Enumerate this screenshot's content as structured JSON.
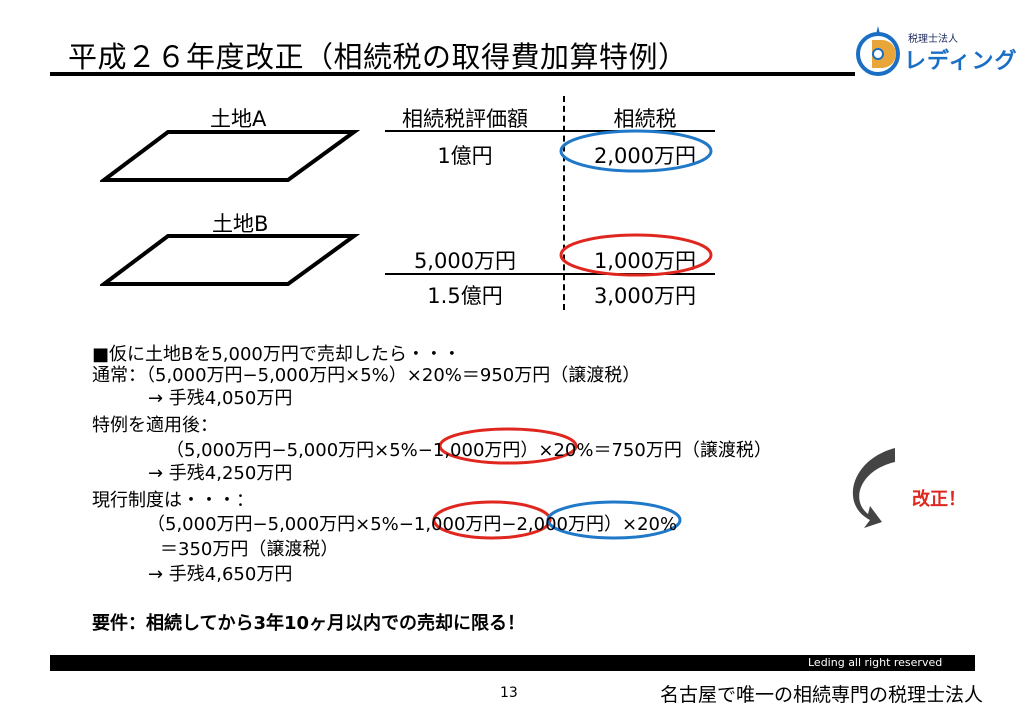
{
  "header": {
    "title": "平成２６年度改正（相続税の取得費加算特例）",
    "logo_small": "税理士法人",
    "logo_big": "レディング"
  },
  "land": {
    "a_label": "土地A",
    "b_label": "土地B"
  },
  "table": {
    "headers": [
      "相続税評価額",
      "相続税"
    ],
    "rows": [
      [
        "1億円",
        "2,000万円"
      ],
      [
        "5,000万円",
        "1,000万円"
      ],
      [
        "1.5億円",
        "3,000万円"
      ]
    ]
  },
  "body": {
    "lines": [
      "■仮に土地Bを5,000万円で売却したら・・・",
      "通常：（5,000万円−5,000万円×5%）×20%＝950万円（譲渡税）",
      "→  手残4,050万円",
      "特例を適用後：",
      "（5,000万円−5,000万円×5%−1,000万円）×20%＝750万円（譲渡税）",
      "→  手残4,250万円",
      "現行制度は・・・：",
      "（5,000万円−5,000万円×5%−1,000万円−2,000万円）×20%",
      "＝350万円（譲渡税）",
      "→  手残4,650万円"
    ],
    "requirement": "要件：相続してから3年10ヶ月以内での売却に限る！"
  },
  "annotation": {
    "kaisei": "改正！"
  },
  "footer": {
    "rights": "Leding all right reserved",
    "page": "13",
    "org": "名古屋で唯一の相続専門の税理士法人"
  },
  "colors": {
    "red_circle": "#e0271f",
    "blue_circle": "#1f78c8",
    "arrow": "#444444"
  }
}
